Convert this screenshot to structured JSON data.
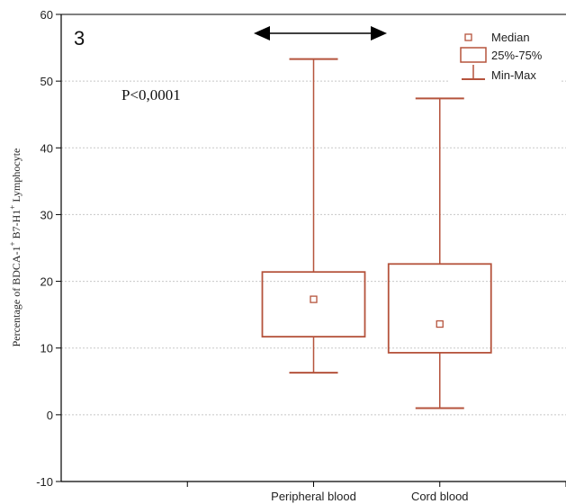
{
  "chart_data": {
    "type": "boxplot",
    "panel_label": "3",
    "annotation": "P<0,0001",
    "ylabel_parts": [
      "Percentage of BDCA-1",
      "+",
      " B7-H1",
      "+",
      " Lymphocyte"
    ],
    "ylim": [
      -10,
      60
    ],
    "yticks": [
      "-10",
      "0",
      "10",
      "20",
      "30",
      "40",
      "50",
      "60"
    ],
    "grid": true,
    "categories": [
      "Peripheral blood",
      "Cord blood"
    ],
    "boxes": [
      {
        "category": "Peripheral blood",
        "min": 6.3,
        "q1": 11.7,
        "median": 17.3,
        "q3": 21.4,
        "max": 53.3
      },
      {
        "category": "Cord blood",
        "min": 1.0,
        "q1": 9.3,
        "median": 13.6,
        "q3": 22.6,
        "max": 47.4
      }
    ],
    "legend": {
      "placement": "top-right",
      "entries": [
        "Median",
        "25%-75%",
        "Min-Max"
      ]
    },
    "colors": {
      "box": "#b5533c",
      "axis": "#000000",
      "grid": "#c8c8c8"
    }
  }
}
